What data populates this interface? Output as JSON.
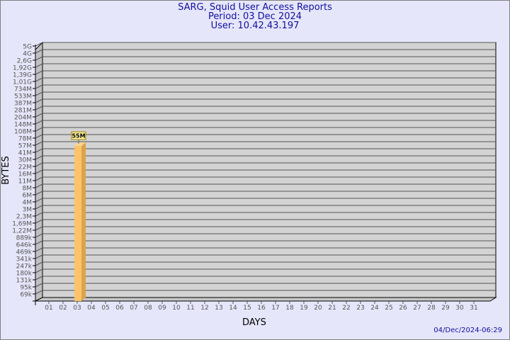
{
  "chart_data": {
    "type": "bar",
    "title": "SARG, Squid User Access Reports",
    "subtitle_period": "Period: 03 Dec 2024",
    "subtitle_user": "User: 10.42.43.197",
    "xlabel": "DAYS",
    "ylabel": "BYTES",
    "y_scale": "log",
    "y_ticks": [
      "5G",
      "4G",
      "2,6G",
      "1,92G",
      "1,39G",
      "1,01G",
      "734M",
      "533M",
      "387M",
      "281M",
      "204M",
      "148M",
      "108M",
      "78M",
      "57M",
      "41M",
      "30M",
      "22M",
      "16M",
      "11M",
      "8M",
      "6M",
      "4M",
      "3M",
      "2,3M",
      "1,69M",
      "1,22M",
      "889k",
      "646k",
      "469k",
      "341k",
      "247k",
      "180k",
      "131k",
      "95k",
      "69k"
    ],
    "categories": [
      "01",
      "02",
      "03",
      "04",
      "05",
      "06",
      "07",
      "08",
      "09",
      "10",
      "11",
      "12",
      "13",
      "14",
      "15",
      "16",
      "17",
      "18",
      "19",
      "20",
      "21",
      "22",
      "23",
      "24",
      "25",
      "26",
      "27",
      "28",
      "29",
      "30",
      "31"
    ],
    "bars": [
      {
        "day": "03",
        "value_bytes": 55000000,
        "label": "55M"
      }
    ],
    "grid": true,
    "colors": {
      "background": "#e6e6fa",
      "plot": "#d3d3d3",
      "bar_front": "#fdc36a",
      "bar_side": "#dba34a",
      "title": "#1010a0",
      "label_box": "#f8f0a0"
    }
  },
  "footer": {
    "timestamp": "04/Dec/2024-06:29"
  }
}
